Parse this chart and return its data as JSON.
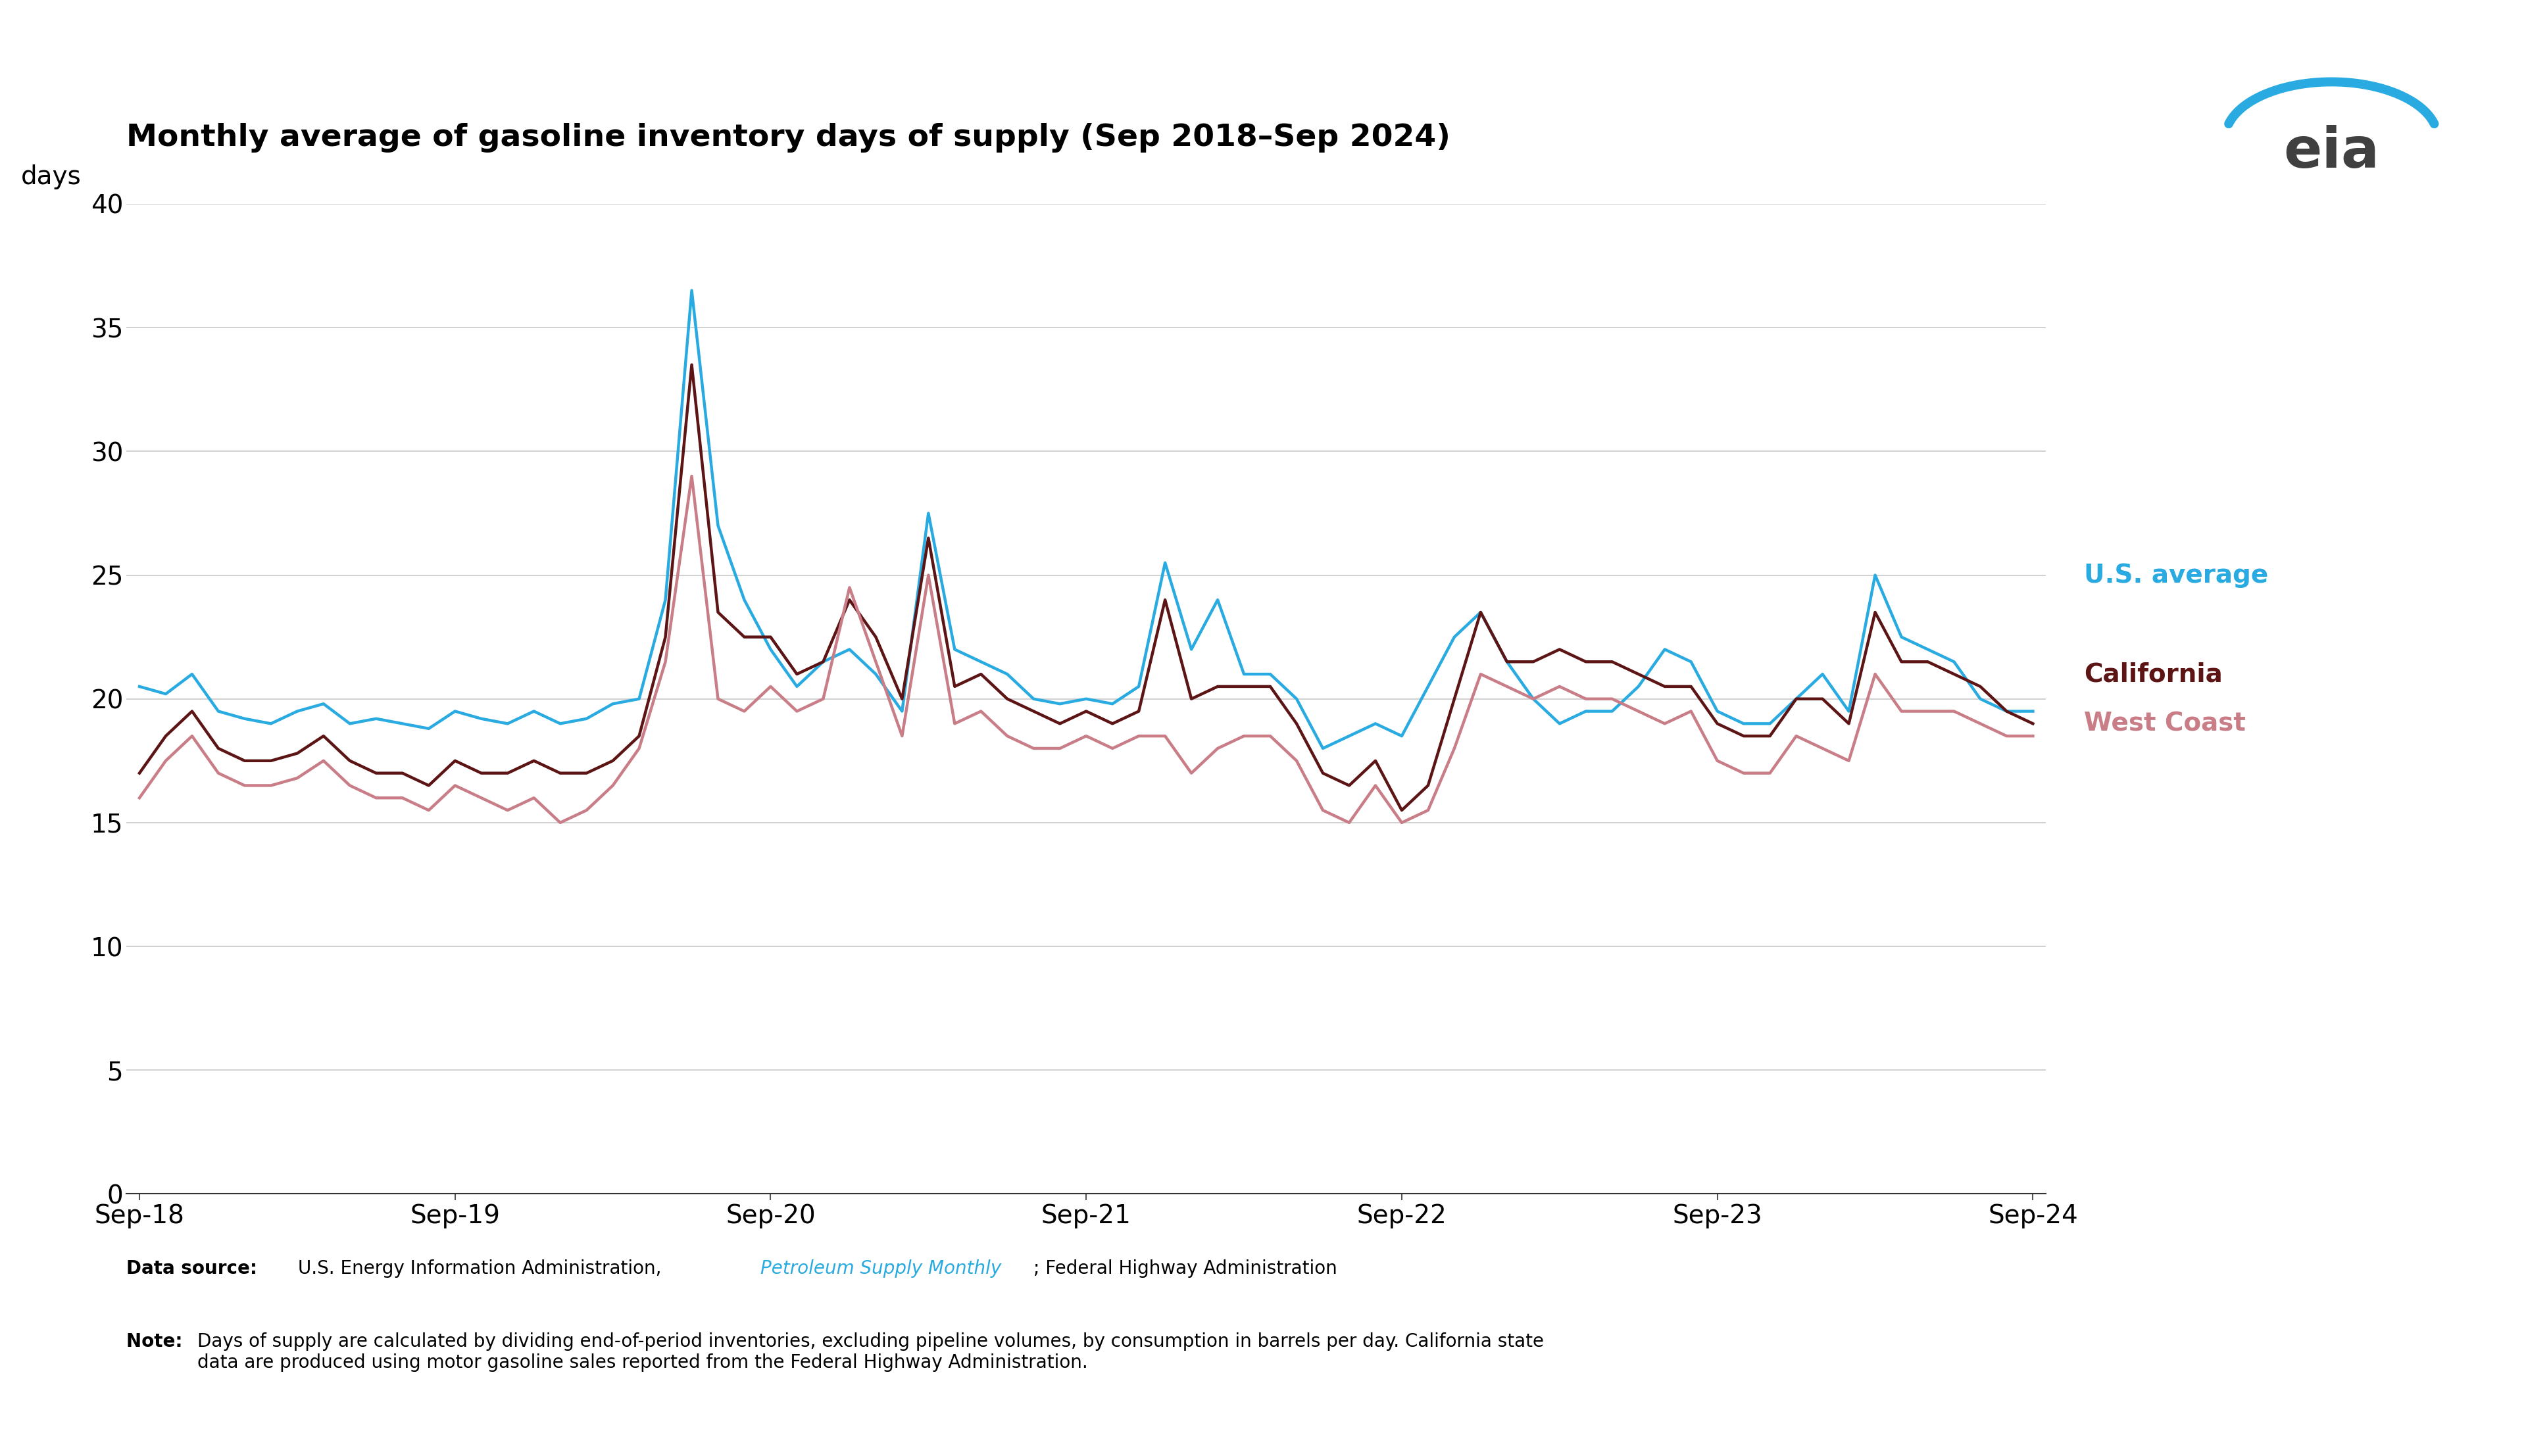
{
  "title": "Monthly average of gasoline inventory days of supply (Sep 2018–Sep 2024)",
  "ylabel": "days",
  "background_color": "#ffffff",
  "title_fontsize": 34,
  "ylabel_fontsize": 28,
  "tick_fontsize": 28,
  "legend_fontsize": 28,
  "footer_fontsize": 20,
  "ylim": [
    0,
    40
  ],
  "yticks": [
    0,
    5,
    10,
    15,
    20,
    25,
    30,
    35,
    40
  ],
  "xtick_labels": [
    "Sep-18",
    "Sep-19",
    "Sep-20",
    "Sep-21",
    "Sep-22",
    "Sep-23",
    "Sep-24"
  ],
  "legend_labels": [
    "U.S. average",
    "California",
    "West Coast"
  ],
  "us_color": "#29abe2",
  "ca_color": "#5c1414",
  "wc_color": "#c87d87",
  "us_avg": [
    20.5,
    20.2,
    21.0,
    19.5,
    19.2,
    19.0,
    19.5,
    19.8,
    19.0,
    19.2,
    19.0,
    18.8,
    19.5,
    19.2,
    19.0,
    19.5,
    19.0,
    19.2,
    19.8,
    20.0,
    24.0,
    36.5,
    27.0,
    24.0,
    22.0,
    20.5,
    21.5,
    22.0,
    21.0,
    19.5,
    27.5,
    22.0,
    21.5,
    21.0,
    20.0,
    19.8,
    20.0,
    19.8,
    20.5,
    25.5,
    22.0,
    24.0,
    21.0,
    21.0,
    20.0,
    18.0,
    18.5,
    19.0,
    18.5,
    20.5,
    22.5,
    23.5,
    21.5,
    20.0,
    19.0,
    19.5,
    19.5,
    20.5,
    22.0,
    21.5,
    19.5,
    19.0,
    19.0,
    20.0,
    21.0,
    19.5,
    25.0,
    22.5,
    22.0,
    21.5,
    20.0,
    19.5,
    19.5
  ],
  "california": [
    17.0,
    18.5,
    19.5,
    18.0,
    17.5,
    17.5,
    17.8,
    18.5,
    17.5,
    17.0,
    17.0,
    16.5,
    17.5,
    17.0,
    17.0,
    17.5,
    17.0,
    17.0,
    17.5,
    18.5,
    22.5,
    33.5,
    23.5,
    22.5,
    22.5,
    21.0,
    21.5,
    24.0,
    22.5,
    20.0,
    26.5,
    20.5,
    21.0,
    20.0,
    19.5,
    19.0,
    19.5,
    19.0,
    19.5,
    24.0,
    20.0,
    20.5,
    20.5,
    20.5,
    19.0,
    17.0,
    16.5,
    17.5,
    15.5,
    16.5,
    20.0,
    23.5,
    21.5,
    21.5,
    22.0,
    21.5,
    21.5,
    21.0,
    20.5,
    20.5,
    19.0,
    18.5,
    18.5,
    20.0,
    20.0,
    19.0,
    23.5,
    21.5,
    21.5,
    21.0,
    20.5,
    19.5,
    19.0
  ],
  "west_coast": [
    16.0,
    17.5,
    18.5,
    17.0,
    16.5,
    16.5,
    16.8,
    17.5,
    16.5,
    16.0,
    16.0,
    15.5,
    16.5,
    16.0,
    15.5,
    16.0,
    15.0,
    15.5,
    16.5,
    18.0,
    21.5,
    29.0,
    20.0,
    19.5,
    20.5,
    19.5,
    20.0,
    24.5,
    21.5,
    18.5,
    25.0,
    19.0,
    19.5,
    18.5,
    18.0,
    18.0,
    18.5,
    18.0,
    18.5,
    18.5,
    17.0,
    18.0,
    18.5,
    18.5,
    17.5,
    15.5,
    15.0,
    16.5,
    15.0,
    15.5,
    18.0,
    21.0,
    20.5,
    20.0,
    20.5,
    20.0,
    20.0,
    19.5,
    19.0,
    19.5,
    17.5,
    17.0,
    17.0,
    18.5,
    18.0,
    17.5,
    21.0,
    19.5,
    19.5,
    19.5,
    19.0,
    18.5,
    18.5
  ]
}
